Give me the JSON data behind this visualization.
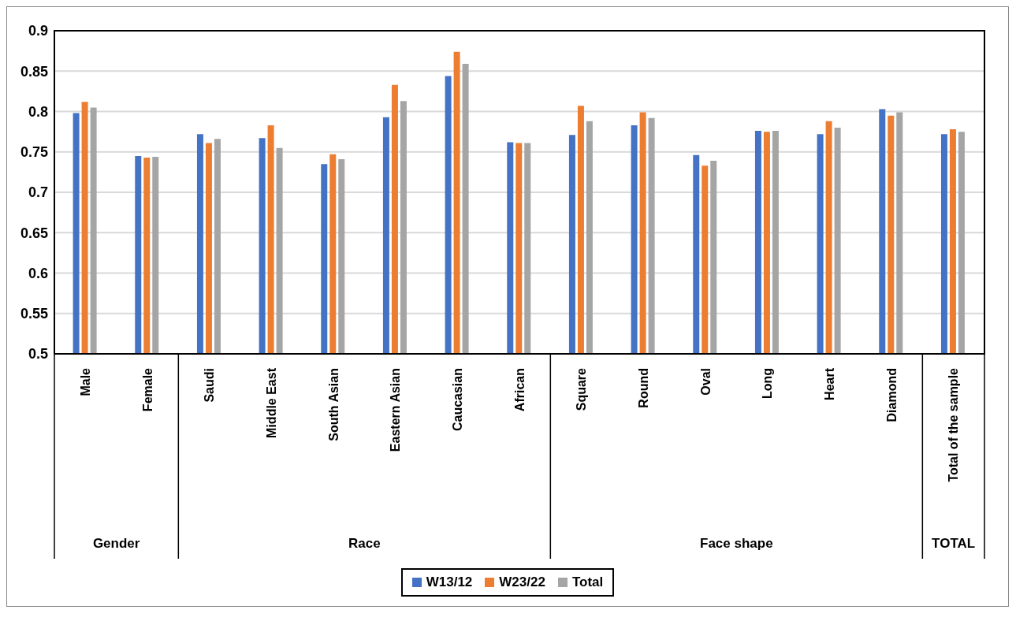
{
  "chart_data": {
    "type": "bar",
    "categories": [
      "Male",
      "Female",
      "Saudi",
      "Middle East",
      "South Asian",
      "Eastern Asian",
      "Caucasian",
      "African",
      "Square",
      "Round",
      "Oval",
      "Long",
      "Heart",
      "Diamond",
      "Total of the sample"
    ],
    "series": [
      {
        "name": "W13/12",
        "color": "#4472c4",
        "values": [
          0.798,
          0.745,
          0.772,
          0.767,
          0.735,
          0.793,
          0.844,
          0.762,
          0.771,
          0.783,
          0.746,
          0.776,
          0.772,
          0.803,
          0.772
        ]
      },
      {
        "name": "W23/22",
        "color": "#ed7d31",
        "values": [
          0.812,
          0.743,
          0.761,
          0.783,
          0.747,
          0.833,
          0.874,
          0.761,
          0.807,
          0.799,
          0.733,
          0.775,
          0.788,
          0.795,
          0.778
        ]
      },
      {
        "name": "Total",
        "color": "#a5a5a5",
        "values": [
          0.805,
          0.744,
          0.766,
          0.755,
          0.741,
          0.813,
          0.859,
          0.761,
          0.788,
          0.792,
          0.739,
          0.776,
          0.78,
          0.799,
          0.775
        ]
      }
    ],
    "annotations": [
      "Gender",
      "Race",
      "Face shape",
      "TOTAL"
    ],
    "ylim": [
      0.5,
      0.9
    ],
    "yticks": [
      0.5,
      0.55,
      0.6,
      0.65,
      0.7,
      0.75,
      0.8,
      0.85,
      0.9
    ],
    "grid": "y",
    "legend": "bottom"
  }
}
